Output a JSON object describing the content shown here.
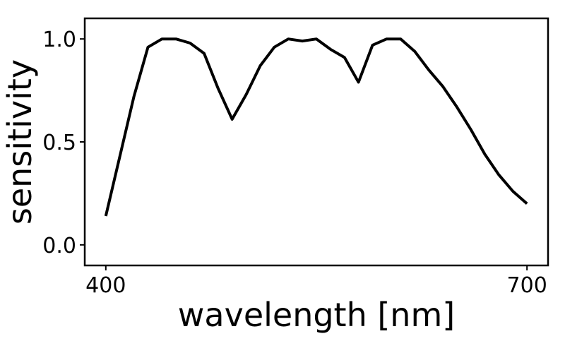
{
  "chart_data": {
    "type": "line",
    "title": "",
    "xlabel": "wavelength [nm]",
    "ylabel": "sensitivity",
    "xlim": [
      385,
      715
    ],
    "ylim": [
      -0.1,
      1.1
    ],
    "xticks": [
      400,
      700
    ],
    "xtick_labels": [
      "400",
      "700"
    ],
    "yticks": [
      0.0,
      0.5,
      1.0
    ],
    "ytick_labels": [
      "0.0",
      "0.5",
      "1.0"
    ],
    "grid": false,
    "line_color": "#000000",
    "series": [
      {
        "name": "sensitivity",
        "x": [
          400,
          410,
          420,
          430,
          440,
          450,
          460,
          470,
          480,
          490,
          500,
          510,
          520,
          530,
          540,
          550,
          560,
          570,
          580,
          590,
          600,
          610,
          620,
          630,
          640,
          650,
          660,
          670,
          680,
          690,
          700
        ],
        "y": [
          0.14,
          0.43,
          0.72,
          0.96,
          1.0,
          1.0,
          0.98,
          0.93,
          0.76,
          0.61,
          0.73,
          0.87,
          0.96,
          1.0,
          0.99,
          1.0,
          0.95,
          0.91,
          0.79,
          0.97,
          1.0,
          1.0,
          0.94,
          0.85,
          0.77,
          0.67,
          0.56,
          0.44,
          0.34,
          0.26,
          0.2
        ]
      }
    ]
  }
}
